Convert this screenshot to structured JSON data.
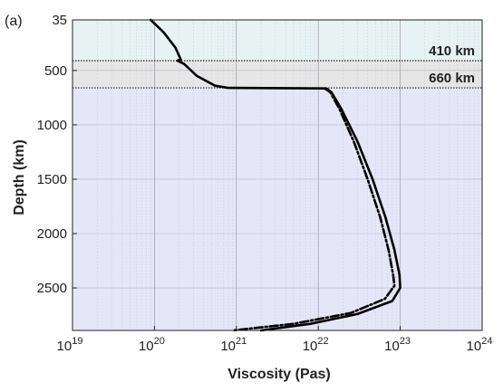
{
  "panel_label": "(a)",
  "chart_data": {
    "type": "line",
    "xlabel": "Viscosity (Pas)",
    "ylabel": "Depth (km)",
    "x_scale": "log",
    "xlim": [
      1e+19,
      1e+24
    ],
    "ylim": [
      35,
      2891
    ],
    "y_reversed": true,
    "x_ticks": [
      {
        "base": "10",
        "exp": "19"
      },
      {
        "base": "10",
        "exp": "20"
      },
      {
        "base": "10",
        "exp": "21"
      },
      {
        "base": "10",
        "exp": "22"
      },
      {
        "base": "10",
        "exp": "23"
      },
      {
        "base": "10",
        "exp": "24"
      }
    ],
    "y_ticks": [
      "35",
      "500",
      "1000",
      "1500",
      "2000",
      "2500"
    ],
    "grid": true,
    "regions": [
      {
        "label": "",
        "depth_range": [
          35,
          410
        ],
        "color": "#e7f3f3"
      },
      {
        "label": "410 km",
        "depth_range": [
          410,
          660
        ],
        "color": "#e6e6e6"
      },
      {
        "label": "660 km",
        "depth_range": [
          660,
          2891
        ],
        "color": "#e6e6f9"
      }
    ],
    "series": [
      {
        "style": "solid",
        "points": [
          [
            9e+19,
            35
          ],
          [
            1.3e+20,
            150
          ],
          [
            1.8e+20,
            290
          ],
          [
            2.1e+20,
            400
          ],
          [
            1.9e+20,
            410
          ],
          [
            2.3e+20,
            440
          ],
          [
            3.3e+20,
            550
          ],
          [
            5.5e+20,
            640
          ],
          [
            8e+20,
            660
          ],
          [
            1.25e+22,
            665
          ],
          [
            1.45e+22,
            700
          ],
          [
            1.9e+22,
            850
          ],
          [
            3e+22,
            1150
          ],
          [
            4.6e+22,
            1500
          ],
          [
            6.6e+22,
            1850
          ],
          [
            8.5e+22,
            2150
          ],
          [
            9.8e+22,
            2380
          ],
          [
            1e+23,
            2500
          ],
          [
            8e+22,
            2620
          ],
          [
            3e+22,
            2740
          ],
          [
            8e+21,
            2830
          ],
          [
            2e+21,
            2891
          ]
        ]
      },
      {
        "style": "dashdot",
        "points": [
          [
            1.2e+22,
            665
          ],
          [
            1.4e+22,
            700
          ],
          [
            1.8e+22,
            850
          ],
          [
            2.7e+22,
            1150
          ],
          [
            4e+22,
            1500
          ],
          [
            5.7e+22,
            1850
          ],
          [
            7.2e+22,
            2150
          ],
          [
            8.2e+22,
            2380
          ],
          [
            8.5e+22,
            2480
          ],
          [
            6.5e+22,
            2600
          ],
          [
            2.5e+22,
            2730
          ],
          [
            5e+21,
            2830
          ],
          [
            9e+20,
            2891
          ]
        ]
      }
    ]
  }
}
